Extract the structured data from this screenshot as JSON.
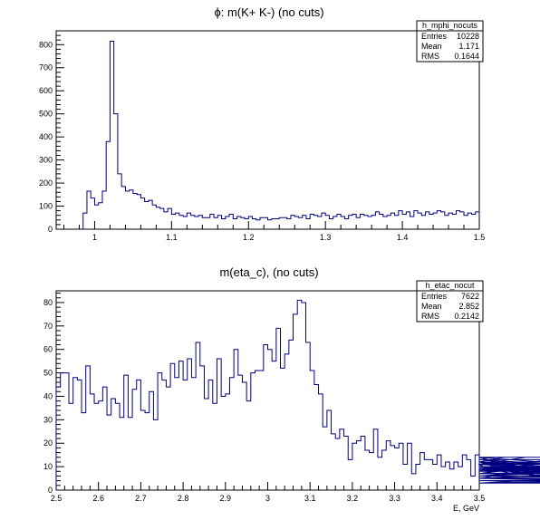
{
  "chart_data": [
    {
      "type": "histogram",
      "title": "ϕ: m(K+ K-) (no cuts)",
      "xlabel": "",
      "ylabel": "",
      "xlim": [
        0.95,
        1.5
      ],
      "ylim": [
        0,
        860
      ],
      "xticks": [
        "1",
        "1.1",
        "1.2",
        "1.3",
        "1.4",
        "1.5"
      ],
      "yticks": [
        "0",
        "100",
        "200",
        "300",
        "400",
        "500",
        "600",
        "700",
        "800"
      ],
      "line_color": "#000080",
      "stats": {
        "name": "h_mphi_nocuts",
        "rows": [
          {
            "label": "Entries",
            "value": "10228"
          },
          {
            "label": "Mean",
            "value": "1.171"
          },
          {
            "label": "RMS",
            "value": "0.1644"
          }
        ]
      },
      "bins": {
        "start": 0.985,
        "width": 0.005,
        "values": [
          70,
          165,
          135,
          105,
          115,
          165,
          380,
          815,
          500,
          240,
          185,
          165,
          170,
          155,
          150,
          135,
          120,
          125,
          105,
          95,
          90,
          75,
          90,
          65,
          70,
          60,
          55,
          70,
          60,
          55,
          60,
          50,
          50,
          65,
          50,
          60,
          45,
          55,
          65,
          45,
          55,
          50,
          45,
          55,
          45,
          40,
          50,
          50,
          40,
          45,
          45,
          50,
          50,
          45,
          60,
          55,
          50,
          60,
          45,
          65,
          60,
          55,
          70,
          60,
          45,
          55,
          65,
          55,
          45,
          60,
          65,
          50,
          65,
          60,
          55,
          60,
          75,
          65,
          55,
          60,
          70,
          60,
          80,
          65,
          75,
          55,
          80,
          70,
          60,
          75,
          65,
          70,
          80,
          75,
          60,
          70,
          65,
          80,
          75,
          60,
          70,
          65,
          75,
          80
        ]
      }
    },
    {
      "type": "histogram",
      "title": "m(eta_c), (no cuts)",
      "xlabel": "E, GeV",
      "ylabel": "",
      "xlim": [
        2.5,
        3.5
      ],
      "ylim": [
        0,
        85
      ],
      "xticks": [
        "2.5",
        "2.6",
        "2.7",
        "2.8",
        "2.9",
        "3",
        "3.1",
        "3.2",
        "3.3",
        "3.4",
        "3.5"
      ],
      "yticks": [
        "0",
        "10",
        "20",
        "30",
        "40",
        "50",
        "60",
        "70",
        "80"
      ],
      "line_color": "#000080",
      "stats": {
        "name": "h_etac_nocut",
        "rows": [
          {
            "label": "Entries",
            "value": "7622"
          },
          {
            "label": "Mean",
            "value": "2.852"
          },
          {
            "label": "RMS",
            "value": "0.2142"
          }
        ]
      },
      "bins": {
        "start": 2.5,
        "width": 0.01,
        "values": [
          44,
          50,
          50,
          37,
          48,
          47,
          33,
          53,
          41,
          37,
          38,
          44,
          32,
          39,
          37,
          31,
          49,
          31,
          43,
          47,
          34,
          33,
          42,
          30,
          50,
          47,
          44,
          54,
          48,
          55,
          47,
          56,
          48,
          63,
          53,
          39,
          47,
          37,
          56,
          40,
          41,
          48,
          60,
          49,
          46,
          38,
          50,
          51,
          51,
          62,
          60,
          55,
          69,
          52,
          58,
          64,
          75,
          81,
          80,
          63,
          51,
          45,
          41,
          27,
          34,
          24,
          22,
          26,
          23,
          13,
          20,
          21,
          23,
          17,
          16,
          26,
          14,
          17,
          21,
          19,
          18,
          20,
          11,
          20,
          7,
          11,
          16,
          13,
          13,
          11,
          15,
          10,
          12,
          9,
          12,
          10,
          15,
          13,
          6,
          15,
          8,
          12,
          11,
          7,
          8,
          12,
          14,
          10,
          7,
          9,
          11,
          14,
          8,
          11,
          12,
          7,
          12,
          10,
          5,
          11,
          9,
          14,
          11,
          9,
          10,
          6,
          10,
          9,
          5,
          8,
          12,
          10,
          6,
          10,
          8,
          13,
          9,
          11,
          6,
          9,
          8,
          10,
          6,
          9,
          5,
          7,
          9,
          5,
          4,
          3,
          5,
          3,
          4,
          5,
          3,
          4,
          4,
          5,
          3,
          9
        ]
      }
    }
  ]
}
